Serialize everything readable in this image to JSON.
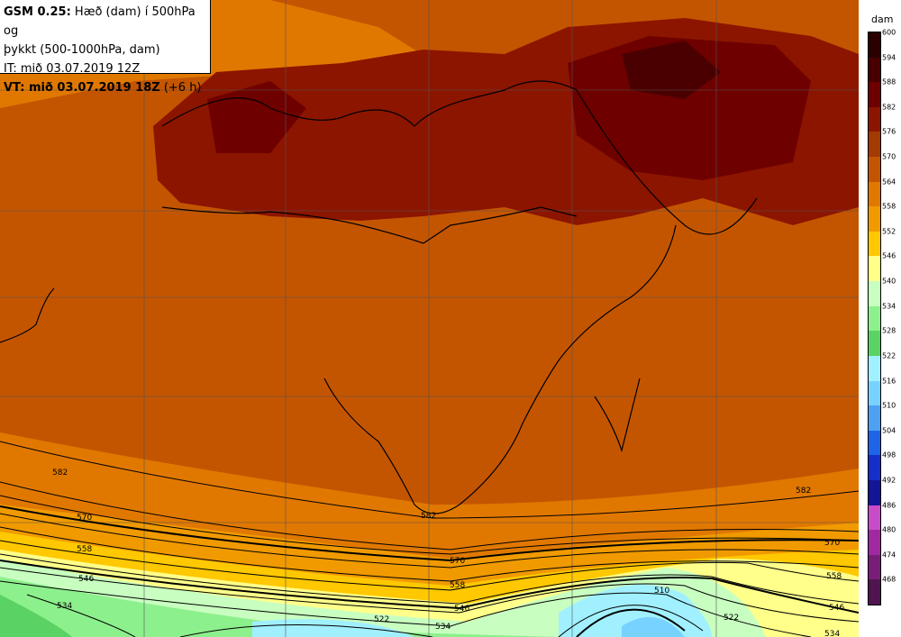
{
  "title": {
    "line1_bold": "GSM 0.25:",
    "line1_rest": " Hæð (dam) í 500hPa og",
    "line2": "þykkt (500-1000hPa, dam)",
    "line3": "IT: mið 03.07.2019 12Z",
    "line4_bold": "VT: mið 03.07.2019 18Z",
    "line4_rest": " (+6 h)"
  },
  "colorbar": {
    "unit": "dam",
    "levels": [
      "600",
      "594",
      "588",
      "582",
      "576",
      "570",
      "564",
      "558",
      "552",
      "546",
      "540",
      "534",
      "528",
      "522",
      "516",
      "510",
      "504",
      "498",
      "492",
      "486",
      "480",
      "474",
      "468"
    ],
    "colors": [
      "#2b0000",
      "#4a0000",
      "#6e0000",
      "#8c1500",
      "#a33a00",
      "#c45500",
      "#e07800",
      "#f09a00",
      "#ffc800",
      "#ffff8a",
      "#c8ffc0",
      "#8cf08c",
      "#5ad264",
      "#a0f0ff",
      "#78d2ff",
      "#4ea0f0",
      "#1e64e6",
      "#1430c8",
      "#141496",
      "#c84bc8",
      "#a028a0",
      "#781e78",
      "#501450"
    ]
  },
  "contour_labels": [
    "582",
    "570",
    "558",
    "546",
    "534",
    "582",
    "570",
    "558",
    "546",
    "534",
    "522",
    "510",
    "522",
    "582",
    "570",
    "558",
    "546",
    "534"
  ]
}
